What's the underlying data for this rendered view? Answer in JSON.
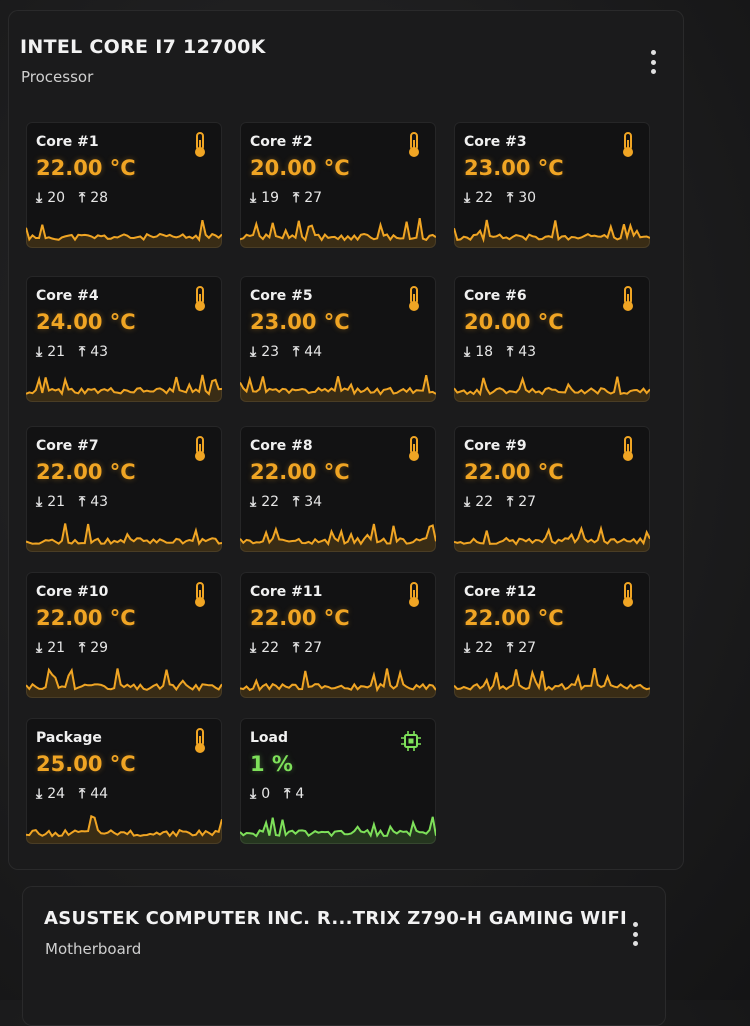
{
  "processor": {
    "title": "INTEL CORE I7 12700K",
    "subtitle": "Processor",
    "menu_icon": "kebab-menu-icon",
    "accent_color": "#f0a524",
    "load_color": "#7ee05a",
    "sensors": [
      {
        "name": "Core #1",
        "value": "22.00 °C",
        "min": "20",
        "max": "28",
        "icon": "thermometer-icon"
      },
      {
        "name": "Core #2",
        "value": "20.00 °C",
        "min": "19",
        "max": "27",
        "icon": "thermometer-icon"
      },
      {
        "name": "Core #3",
        "value": "23.00 °C",
        "min": "22",
        "max": "30",
        "icon": "thermometer-icon"
      },
      {
        "name": "Core #4",
        "value": "24.00 °C",
        "min": "21",
        "max": "43",
        "icon": "thermometer-icon"
      },
      {
        "name": "Core #5",
        "value": "23.00 °C",
        "min": "23",
        "max": "44",
        "icon": "thermometer-icon"
      },
      {
        "name": "Core #6",
        "value": "20.00 °C",
        "min": "18",
        "max": "43",
        "icon": "thermometer-icon"
      },
      {
        "name": "Core #7",
        "value": "22.00 °C",
        "min": "21",
        "max": "43",
        "icon": "thermometer-icon"
      },
      {
        "name": "Core #8",
        "value": "22.00 °C",
        "min": "22",
        "max": "34",
        "icon": "thermometer-icon"
      },
      {
        "name": "Core #9",
        "value": "22.00 °C",
        "min": "22",
        "max": "27",
        "icon": "thermometer-icon"
      },
      {
        "name": "Core #10",
        "value": "22.00 °C",
        "min": "21",
        "max": "29",
        "icon": "thermometer-icon"
      },
      {
        "name": "Core #11",
        "value": "22.00 °C",
        "min": "22",
        "max": "27",
        "icon": "thermometer-icon"
      },
      {
        "name": "Core #12",
        "value": "22.00 °C",
        "min": "22",
        "max": "27",
        "icon": "thermometer-icon"
      },
      {
        "name": "Package",
        "value": "25.00 °C",
        "min": "24",
        "max": "44",
        "icon": "thermometer-icon"
      },
      {
        "name": "Load",
        "value": "1 %",
        "min": "0",
        "max": "4",
        "icon": "cpu-chip-icon"
      }
    ]
  },
  "motherboard": {
    "title": "ASUSTEK COMPUTER INC. R...TRIX Z790-H GAMING WIFI",
    "subtitle": "Motherboard",
    "menu_icon": "kebab-menu-icon"
  },
  "min_arrow": "⤓",
  "max_arrow": "⤒"
}
